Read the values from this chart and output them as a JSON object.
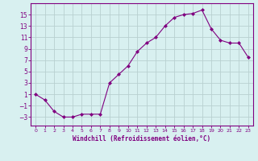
{
  "x": [
    0,
    1,
    2,
    3,
    4,
    5,
    6,
    7,
    8,
    9,
    10,
    11,
    12,
    13,
    14,
    15,
    16,
    17,
    18,
    19,
    20,
    21,
    22,
    23
  ],
  "y": [
    1,
    0,
    -2,
    -3,
    -3,
    -2.5,
    -2.5,
    -2.5,
    3,
    4.5,
    6,
    8.5,
    10,
    11,
    13,
    14.5,
    15,
    15.2,
    15.8,
    12.5,
    10.5,
    10,
    10,
    7.5
  ],
  "line_color": "#800080",
  "marker": "D",
  "marker_size": 2,
  "bg_color": "#d8f0f0",
  "grid_color": "#b8d0d0",
  "tick_color": "#800080",
  "label_color": "#800080",
  "xlabel": "Windchill (Refroidissement éolien,°C)",
  "yticks": [
    -3,
    -1,
    1,
    3,
    5,
    7,
    9,
    11,
    13,
    15
  ],
  "ylim": [
    -4.5,
    17
  ],
  "xlim": [
    -0.5,
    23.5
  ]
}
